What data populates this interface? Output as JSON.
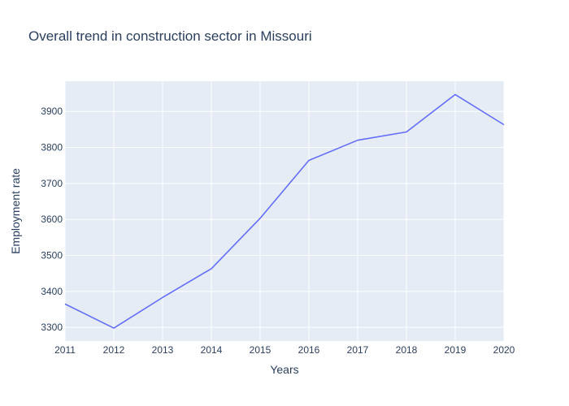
{
  "chart_data": {
    "type": "line",
    "title": "Overall trend in construction sector in Missouri",
    "xlabel": "Years",
    "ylabel": "Employment rate",
    "x": [
      2011,
      2012,
      2013,
      2014,
      2015,
      2016,
      2017,
      2018,
      2019,
      2020
    ],
    "x_tick_labels": [
      "2011",
      "2012",
      "2013",
      "2014",
      "2015",
      "2016",
      "2017",
      "2018",
      "2019",
      "2020"
    ],
    "y_ticks": [
      3300,
      3400,
      3500,
      3600,
      3700,
      3800,
      3900
    ],
    "y_tick_labels": [
      "3300",
      "3400",
      "3500",
      "3600",
      "3700",
      "3800",
      "3900"
    ],
    "xlim": [
      2011,
      2020
    ],
    "ylim": [
      3262,
      3984
    ],
    "grid": true,
    "series": [
      {
        "values": [
          3365,
          3298,
          3383,
          3463,
          3603,
          3764,
          3820,
          3843,
          3947,
          3863
        ]
      }
    ],
    "colors": {
      "line": "#636efa",
      "plot_bg": "#e5ecf6",
      "grid": "#ffffff",
      "text": "#2a3f5f"
    }
  }
}
